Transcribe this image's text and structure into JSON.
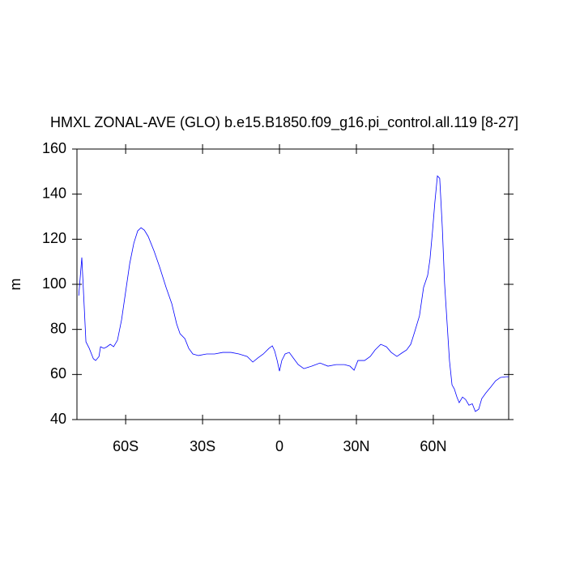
{
  "chart_data": {
    "type": "line",
    "title": "HMXL ZONAL-AVE (GLO) b.e15.B1850.f09_g16.pi_control.all.119 [8-27]",
    "y_label": "m",
    "x": [
      -78.3,
      -77.1,
      -75.5,
      -74.2,
      -72.6,
      -71.7,
      -70.4,
      -69.8,
      -68.5,
      -67.3,
      -66,
      -64.7,
      -63.2,
      -61.6,
      -60,
      -58.4,
      -56.8,
      -55.3,
      -54,
      -52.7,
      -51.2,
      -48.9,
      -46.7,
      -44.2,
      -42,
      -40.1,
      -38.8,
      -36.9,
      -35.4,
      -33.8,
      -31.6,
      -28.4,
      -25.3,
      -22.1,
      -18.9,
      -15.8,
      -12.6,
      -10.4,
      -8.5,
      -6.3,
      -4.1,
      -2.8,
      -1.9,
      -0.9,
      0,
      0.9,
      2.2,
      3.8,
      5.4,
      7.3,
      9.5,
      12.6,
      15.8,
      18.9,
      22.1,
      25.3,
      27.5,
      29.1,
      30.6,
      33.2,
      35.4,
      37.3,
      39.5,
      41.7,
      43.6,
      45.8,
      47.7,
      49.6,
      51.2,
      52.7,
      54.6,
      56.2,
      57.8,
      58.7,
      59.7,
      60.6,
      61.6,
      62.5,
      63.5,
      64.4,
      65.4,
      66.3,
      67.3,
      68.2,
      69.2,
      70.1,
      71.4,
      72.6,
      73.9,
      75.2,
      76.4,
      77.7,
      78.9,
      80.5,
      82.4,
      84.3,
      86.2,
      88.4,
      89.4
    ],
    "series": [
      {
        "name": "HMXL",
        "color": "#0000ff",
        "values": [
          95,
          111.9,
          74.5,
          71.6,
          67,
          66.2,
          68,
          72.3,
          71.6,
          72.3,
          73.4,
          72.3,
          75.2,
          84.2,
          96.8,
          109.3,
          118.3,
          123.7,
          125.1,
          124,
          121.2,
          114.7,
          107.5,
          98.5,
          91.4,
          82.4,
          78.1,
          75.9,
          71.6,
          69.1,
          68.4,
          69.1,
          69.1,
          69.8,
          69.8,
          69.1,
          68,
          65.5,
          67.3,
          69.1,
          71.6,
          72.7,
          70.5,
          66.2,
          61.5,
          66.2,
          69.1,
          69.8,
          67.3,
          64.4,
          62.6,
          63.7,
          65.1,
          63.7,
          64.4,
          64.4,
          63.7,
          61.9,
          66.2,
          66.2,
          68,
          70.9,
          73.4,
          72.3,
          69.8,
          68,
          69.5,
          70.9,
          73.4,
          78.8,
          86,
          98.6,
          104,
          111.1,
          123.7,
          136.3,
          148.1,
          147,
          125.5,
          100.4,
          82.4,
          66.2,
          55.4,
          53.6,
          50,
          47.5,
          50,
          48.9,
          46.4,
          47,
          43.6,
          44.6,
          49.3,
          51.8,
          54.4,
          57.2,
          58.7,
          59,
          59
        ]
      }
    ],
    "xlim": [
      -79,
      89.4
    ],
    "xticks": [
      {
        "value": -60,
        "label": "60S"
      },
      {
        "value": -30,
        "label": "30S"
      },
      0,
      {
        "value": 30,
        "label": "30N"
      },
      {
        "value": 60,
        "label": "60N"
      }
    ],
    "ylim": [
      40,
      160
    ],
    "yticks": [
      40,
      60,
      80,
      100,
      120,
      140,
      160
    ]
  }
}
